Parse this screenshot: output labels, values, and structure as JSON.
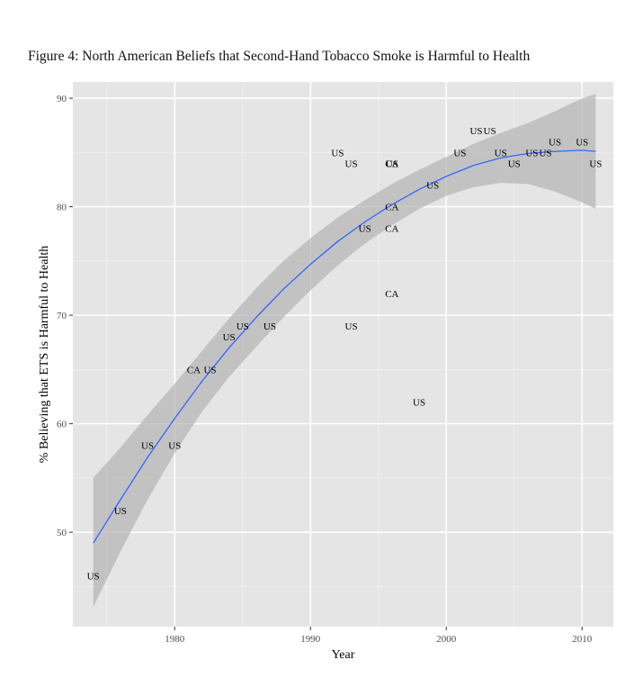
{
  "chart_data": {
    "type": "scatter",
    "title": "Figure 4:  North American Beliefs that Second-Hand Tobacco Smoke is Harmful to Health",
    "xlabel": "Year",
    "ylabel": "% Believing that ETS is Harmful to Health",
    "xlim": [
      1972.5,
      2012.3
    ],
    "ylim": [
      41.3,
      91.5
    ],
    "xticks": [
      1980,
      1990,
      2000,
      2010
    ],
    "yticks": [
      50,
      60,
      70,
      80,
      90
    ],
    "grid": true,
    "panel_background": "#e5e5e5",
    "grid_color": "#ffffff",
    "smooth_color": "#3366ff",
    "ribbon_color": "#b3b3b3",
    "points": [
      {
        "x": 1974,
        "y": 46,
        "label": "US"
      },
      {
        "x": 1976,
        "y": 52,
        "label": "US"
      },
      {
        "x": 1978,
        "y": 58,
        "label": "US"
      },
      {
        "x": 1980,
        "y": 58,
        "label": "US"
      },
      {
        "x": 1981.4,
        "y": 65,
        "label": "CA"
      },
      {
        "x": 1982.6,
        "y": 65,
        "label": "US"
      },
      {
        "x": 1984,
        "y": 68,
        "label": "US"
      },
      {
        "x": 1985,
        "y": 69,
        "label": "US"
      },
      {
        "x": 1987,
        "y": 69,
        "label": "US"
      },
      {
        "x": 1992,
        "y": 85,
        "label": "US"
      },
      {
        "x": 1993,
        "y": 84,
        "label": "US"
      },
      {
        "x": 1993,
        "y": 69,
        "label": "US"
      },
      {
        "x": 1994,
        "y": 78,
        "label": "US"
      },
      {
        "x": 1996,
        "y": 84,
        "label": "CA"
      },
      {
        "x": 1996,
        "y": 84,
        "label": "US"
      },
      {
        "x": 1996,
        "y": 80,
        "label": "CA"
      },
      {
        "x": 1996,
        "y": 78,
        "label": "CA"
      },
      {
        "x": 1996,
        "y": 72,
        "label": "CA"
      },
      {
        "x": 1998,
        "y": 62,
        "label": "US"
      },
      {
        "x": 1999,
        "y": 82,
        "label": "US"
      },
      {
        "x": 2001,
        "y": 85,
        "label": "US"
      },
      {
        "x": 2002.2,
        "y": 87,
        "label": "US"
      },
      {
        "x": 2003.2,
        "y": 87,
        "label": "US"
      },
      {
        "x": 2004,
        "y": 85,
        "label": "US"
      },
      {
        "x": 2005,
        "y": 84,
        "label": "US"
      },
      {
        "x": 2006.3,
        "y": 85,
        "label": "US"
      },
      {
        "x": 2007.3,
        "y": 85,
        "label": "US"
      },
      {
        "x": 2008,
        "y": 86,
        "label": "US"
      },
      {
        "x": 2010,
        "y": 86,
        "label": "US"
      },
      {
        "x": 2011,
        "y": 84,
        "label": "US"
      }
    ],
    "smooth": {
      "x": [
        1974,
        1976,
        1978,
        1980,
        1982,
        1984,
        1986,
        1988,
        1990,
        1992,
        1994,
        1996,
        1998,
        2000,
        2002,
        2004,
        2006,
        2008,
        2010,
        2011
      ],
      "y": [
        49.0,
        53.0,
        56.9,
        60.5,
        63.9,
        67.0,
        69.8,
        72.4,
        74.7,
        76.8,
        78.6,
        80.2,
        81.6,
        82.8,
        83.8,
        84.5,
        84.9,
        85.1,
        85.2,
        85.1
      ],
      "lo": [
        43.1,
        48.2,
        53.0,
        57.3,
        61.1,
        64.3,
        67.1,
        69.8,
        72.3,
        74.6,
        76.6,
        78.3,
        79.8,
        81.0,
        81.8,
        82.2,
        82.1,
        81.4,
        80.4,
        79.8
      ],
      "hi": [
        55.0,
        57.8,
        60.8,
        63.7,
        66.7,
        69.7,
        72.5,
        75.0,
        77.1,
        79.0,
        80.6,
        82.1,
        83.4,
        84.6,
        85.8,
        86.8,
        87.7,
        88.8,
        90.0,
        90.4
      ]
    }
  }
}
